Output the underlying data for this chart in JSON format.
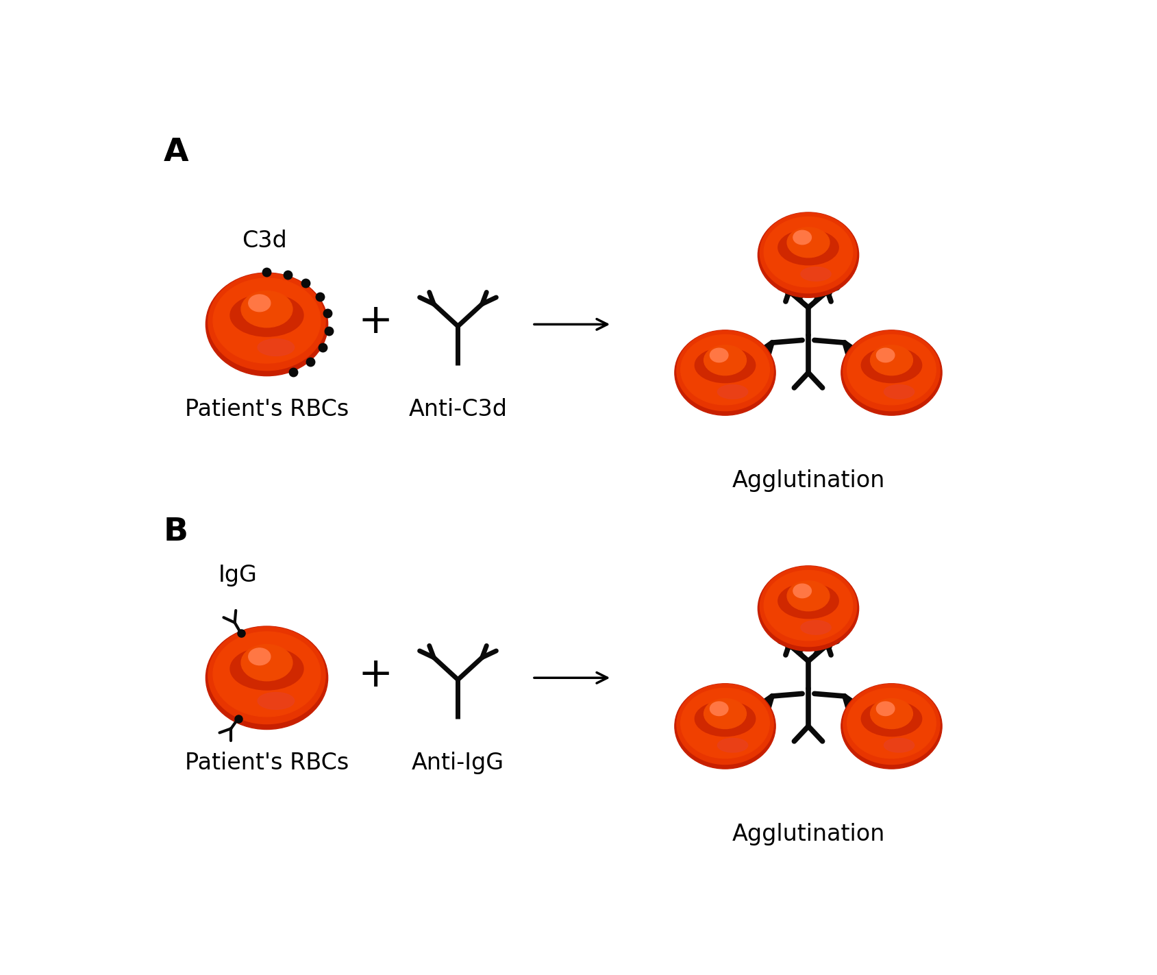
{
  "bg_color": "#ffffff",
  "dot_color": "#0a0a0a",
  "line_color": "#0a0a0a",
  "label_A": "A",
  "label_B": "B",
  "label_c3d": "C3d",
  "label_patients_rbcs": "Patient's RBCs",
  "label_anti_c3d": "Anti-C3d",
  "label_agglutination_a": "Agglutination",
  "label_igg": "IgG",
  "label_anti_igg": "Anti-IgG",
  "label_patients_rbcs_b": "Patient's RBCs",
  "label_agglutination_b": "Agglutination",
  "font_size_label": 24,
  "font_size_ab": 34,
  "rbc_base": "#cc2200",
  "rbc_mid": "#e03300",
  "rbc_bright": "#ff4400",
  "rbc_highlight": "#ff6633"
}
